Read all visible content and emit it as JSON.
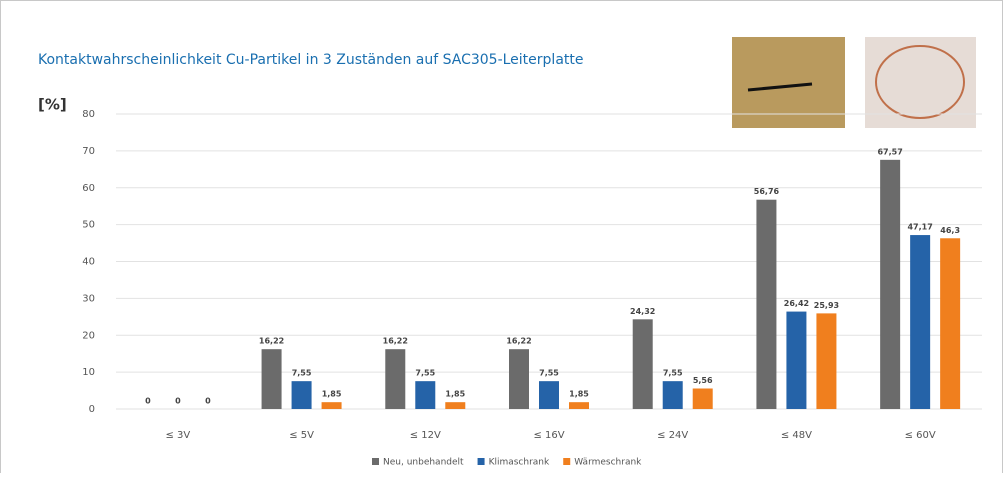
{
  "chart_data": {
    "type": "bar",
    "title": "Kontaktwahrscheinlichkeit Cu-Partikel in 3 Zuständen auf SAC305-Leiterplatte",
    "y_label": "[%]",
    "categories": [
      "≤ 3V",
      "≤ 5V",
      "≤ 12V",
      "≤ 16V",
      "≤ 24V",
      "≤ 48V",
      "≤ 60V"
    ],
    "series": [
      {
        "name": "Neu, unbehandelt",
        "color": "#6b6b6b",
        "values": [
          0,
          16.22,
          16.22,
          16.22,
          24.32,
          56.76,
          67.57
        ],
        "value_labels": [
          "0",
          "16,22",
          "16,22",
          "16,22",
          "24,32",
          "56,76",
          "67,57"
        ]
      },
      {
        "name": "Klimaschrank",
        "color": "#2563a8",
        "values": [
          0,
          7.55,
          7.55,
          7.55,
          7.55,
          26.42,
          47.17
        ],
        "value_labels": [
          "0",
          "7,55",
          "7,55",
          "7,55",
          "7,55",
          "26,42",
          "47,17"
        ]
      },
      {
        "name": "Wärmeschrank",
        "color": "#f07f1e",
        "values": [
          0,
          1.85,
          1.85,
          1.85,
          5.56,
          25.93,
          46.3
        ],
        "value_labels": [
          "0",
          "1,85",
          "1,85",
          "1,85",
          "5,56",
          "25,93",
          "46,3"
        ]
      }
    ],
    "ylim": [
      0,
      80
    ],
    "yticks": [
      0,
      10,
      20,
      30,
      40,
      50,
      60,
      70,
      80
    ],
    "grid": true,
    "legend": "bottom"
  }
}
